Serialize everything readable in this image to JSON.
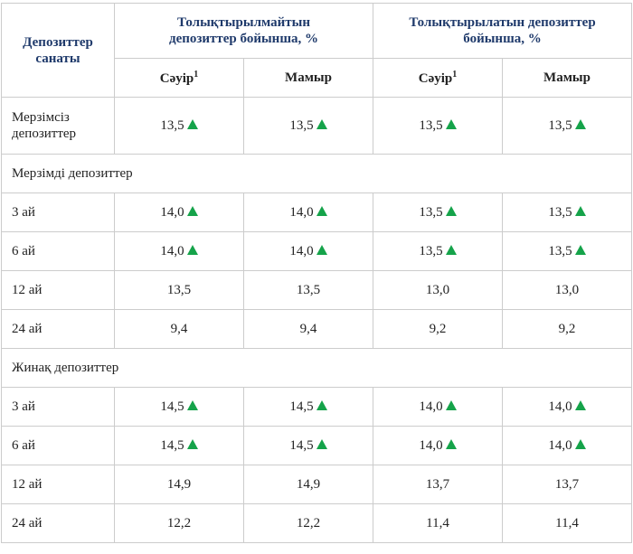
{
  "header": {
    "category": "Депозиттер санаты",
    "group1": "Толықтырылмайтын депозиттер бойынша, %",
    "group2": "Толықтырылатын депозиттер бойынша, %",
    "month1": "Сәуір",
    "month1_footnote": "1",
    "month2": "Мамыр"
  },
  "rows": [
    {
      "label": "Мерзімсіз депозиттер",
      "values": [
        "13,5",
        "13,5",
        "13,5",
        "13,5"
      ],
      "up": [
        true,
        true,
        true,
        true
      ]
    },
    {
      "section": "Мерзімді депозиттер"
    },
    {
      "label": "3 ай",
      "values": [
        "14,0",
        "14,0",
        "13,5",
        "13,5"
      ],
      "up": [
        true,
        true,
        true,
        true
      ]
    },
    {
      "label": "6 ай",
      "values": [
        "14,0",
        "14,0",
        "13,5",
        "13,5"
      ],
      "up": [
        true,
        true,
        true,
        true
      ]
    },
    {
      "label": "12 ай",
      "values": [
        "13,5",
        "13,5",
        "13,0",
        "13,0"
      ],
      "up": [
        false,
        false,
        false,
        false
      ]
    },
    {
      "label": "24 ай",
      "values": [
        "9,4",
        "9,4",
        "9,2",
        "9,2"
      ],
      "up": [
        false,
        false,
        false,
        false
      ]
    },
    {
      "section": "Жинақ депозиттер"
    },
    {
      "label": "3 ай",
      "values": [
        "14,5",
        "14,5",
        "14,0",
        "14,0"
      ],
      "up": [
        true,
        true,
        true,
        true
      ]
    },
    {
      "label": "6 ай",
      "values": [
        "14,5",
        "14,5",
        "14,0",
        "14,0"
      ],
      "up": [
        true,
        true,
        true,
        true
      ]
    },
    {
      "label": "12 ай",
      "values": [
        "14,9",
        "14,9",
        "13,7",
        "13,7"
      ],
      "up": [
        false,
        false,
        false,
        false
      ]
    },
    {
      "label": "24 ай",
      "values": [
        "12,2",
        "12,2",
        "11,4",
        "11,4"
      ],
      "up": [
        false,
        false,
        false,
        false
      ]
    }
  ],
  "colors": {
    "up_indicator": "#15a34a",
    "header_text": "#1f3a6b"
  },
  "icons": {
    "up": "triangle-up-icon"
  }
}
